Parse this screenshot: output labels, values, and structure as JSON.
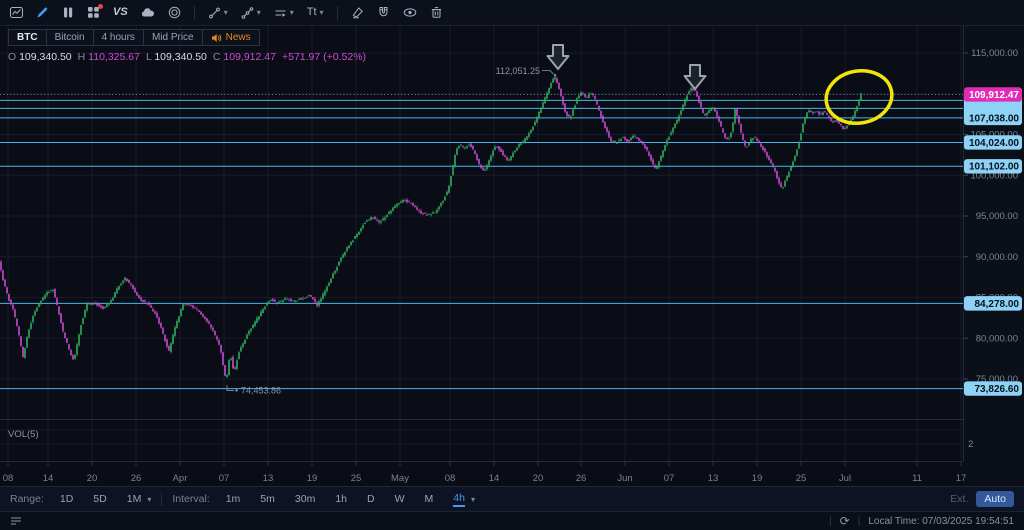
{
  "toolbar": {
    "caret": "▾",
    "vs_label": "VS",
    "text_tool_label": "Tt"
  },
  "symbol_bar": {
    "symbol": "BTC",
    "name": "Bitcoin",
    "timeframe": "4 hours",
    "price_type": "Mid Price",
    "news_label": "News"
  },
  "ohlc": {
    "o_label": "O",
    "o_value": "109,340.50",
    "h_label": "H",
    "h_value": "110,325.67",
    "l_label": "L",
    "l_value": "109,340.50",
    "c_label": "C",
    "c_value": "109,912.47",
    "change": "+571.97 (+0.52%)"
  },
  "chart_ui": {
    "vol_indicator": "VOL(5)",
    "volume_axis_label": "2"
  },
  "chart_data": {
    "type": "candlestick",
    "symbol": "BTC",
    "interval": "4h",
    "scale": {
      "p1": 115000,
      "y1": 53,
      "p2": 95000,
      "y2": 216
    },
    "plot_right": 963,
    "plot_top": 25,
    "plot_bottom_price_pane": 419,
    "plot_bottom": 461,
    "y_ticks": [
      {
        "label": "115,000.00",
        "price": 115000
      },
      {
        "label": "110,000.00",
        "price": 110000
      },
      {
        "label": "105,000.00",
        "price": 105000
      },
      {
        "label": "100,000.00",
        "price": 100000
      },
      {
        "label": "95,000.00",
        "price": 95000
      },
      {
        "label": "90,000.00",
        "price": 90000
      },
      {
        "label": "85,000.00",
        "price": 85000
      },
      {
        "label": "80,000.00",
        "price": 80000
      },
      {
        "label": "75,000.00",
        "price": 75000
      }
    ],
    "x_ticks": [
      {
        "label": "08",
        "x": 8
      },
      {
        "label": "14",
        "x": 48
      },
      {
        "label": "20",
        "x": 92
      },
      {
        "label": "26",
        "x": 136
      },
      {
        "label": "Apr",
        "x": 180
      },
      {
        "label": "07",
        "x": 224
      },
      {
        "label": "13",
        "x": 268
      },
      {
        "label": "19",
        "x": 312
      },
      {
        "label": "25",
        "x": 356
      },
      {
        "label": "May",
        "x": 400
      },
      {
        "label": "08",
        "x": 450
      },
      {
        "label": "14",
        "x": 494
      },
      {
        "label": "20",
        "x": 538
      },
      {
        "label": "26",
        "x": 581
      },
      {
        "label": "Jun",
        "x": 625
      },
      {
        "label": "07",
        "x": 669
      },
      {
        "label": "13",
        "x": 713
      },
      {
        "label": "19",
        "x": 757
      },
      {
        "label": "25",
        "x": 801
      },
      {
        "label": "Jul",
        "x": 845
      },
      {
        "label": "11",
        "x": 917
      },
      {
        "label": "17",
        "x": 961
      }
    ],
    "current_price": {
      "label": "109,912.47",
      "price": 109912.47
    },
    "price_lines": [
      {
        "label": "",
        "price": 109190,
        "hidden": true
      },
      {
        "label": "",
        "price": 108210,
        "hidden": true
      },
      {
        "label": "107,038.00",
        "price": 107038
      },
      {
        "label": "104,024.00",
        "price": 104024
      },
      {
        "label": "101,102.00",
        "price": 101102
      },
      {
        "label": "84,278.00",
        "price": 84278
      },
      {
        "label": "73,826.60",
        "price": 73826.6
      }
    ],
    "annotations": {
      "peak": {
        "text": "112,051.25",
        "x": 556,
        "price": 112051.25
      },
      "low": {
        "text": "74,453.86",
        "x": 227,
        "price": 74453.86
      },
      "arrows": [
        {
          "x": 558,
          "y": 45
        },
        {
          "x": 695,
          "y": 65
        }
      ],
      "highlight_ellipse": {
        "cx": 859,
        "cy": 97,
        "rx": 33,
        "ry": 26,
        "rotate": -10
      }
    },
    "candle_step": 2,
    "end_x": 862,
    "anchors": [
      [
        0,
        89500
      ],
      [
        4,
        87200
      ],
      [
        9,
        85000
      ],
      [
        14,
        83500
      ],
      [
        19,
        81000
      ],
      [
        24,
        77600
      ],
      [
        28,
        80200
      ],
      [
        34,
        82800
      ],
      [
        41,
        84400
      ],
      [
        48,
        85600
      ],
      [
        54,
        86000
      ],
      [
        59,
        83500
      ],
      [
        64,
        80800
      ],
      [
        70,
        78600
      ],
      [
        75,
        77200
      ],
      [
        81,
        81200
      ],
      [
        88,
        84200
      ],
      [
        96,
        84300
      ],
      [
        104,
        83700
      ],
      [
        112,
        84600
      ],
      [
        119,
        86300
      ],
      [
        126,
        87400
      ],
      [
        133,
        86300
      ],
      [
        141,
        84700
      ],
      [
        149,
        84200
      ],
      [
        157,
        82900
      ],
      [
        164,
        80500
      ],
      [
        170,
        78400
      ],
      [
        176,
        81300
      ],
      [
        184,
        84200
      ],
      [
        192,
        84000
      ],
      [
        200,
        83300
      ],
      [
        208,
        82100
      ],
      [
        215,
        80600
      ],
      [
        221,
        78900
      ],
      [
        227,
        74600
      ],
      [
        231,
        78200
      ],
      [
        235,
        75800
      ],
      [
        240,
        78400
      ],
      [
        247,
        80200
      ],
      [
        255,
        81800
      ],
      [
        263,
        83400
      ],
      [
        271,
        84800
      ],
      [
        279,
        84300
      ],
      [
        287,
        84900
      ],
      [
        295,
        84500
      ],
      [
        303,
        84900
      ],
      [
        311,
        85300
      ],
      [
        318,
        84000
      ],
      [
        325,
        85600
      ],
      [
        333,
        87600
      ],
      [
        341,
        89600
      ],
      [
        349,
        91300
      ],
      [
        357,
        92600
      ],
      [
        365,
        94100
      ],
      [
        373,
        94900
      ],
      [
        381,
        94200
      ],
      [
        389,
        95300
      ],
      [
        397,
        96400
      ],
      [
        405,
        97000
      ],
      [
        413,
        96400
      ],
      [
        421,
        95400
      ],
      [
        429,
        95100
      ],
      [
        433,
        95300
      ],
      [
        437,
        95600
      ],
      [
        441,
        96300
      ],
      [
        445,
        97200
      ],
      [
        449,
        98200
      ],
      [
        453,
        100500
      ],
      [
        457,
        103200
      ],
      [
        461,
        103800
      ],
      [
        465,
        103200
      ],
      [
        469,
        103900
      ],
      [
        473,
        103400
      ],
      [
        477,
        102200
      ],
      [
        481,
        101000
      ],
      [
        485,
        100400
      ],
      [
        489,
        101500
      ],
      [
        493,
        102800
      ],
      [
        497,
        103600
      ],
      [
        501,
        103100
      ],
      [
        505,
        102300
      ],
      [
        509,
        101600
      ],
      [
        513,
        102600
      ],
      [
        519,
        103600
      ],
      [
        525,
        104300
      ],
      [
        531,
        105300
      ],
      [
        537,
        106800
      ],
      [
        543,
        108600
      ],
      [
        549,
        110400
      ],
      [
        553,
        111600
      ],
      [
        556,
        112000
      ],
      [
        559,
        111000
      ],
      [
        563,
        109200
      ],
      [
        567,
        107400
      ],
      [
        571,
        107000
      ],
      [
        575,
        108300
      ],
      [
        579,
        109700
      ],
      [
        583,
        110300
      ],
      [
        587,
        109300
      ],
      [
        591,
        110200
      ],
      [
        595,
        109600
      ],
      [
        599,
        108300
      ],
      [
        603,
        106900
      ],
      [
        607,
        105600
      ],
      [
        611,
        104300
      ],
      [
        617,
        103900
      ],
      [
        623,
        104700
      ],
      [
        629,
        104100
      ],
      [
        635,
        104900
      ],
      [
        641,
        104200
      ],
      [
        645,
        103600
      ],
      [
        649,
        102800
      ],
      [
        653,
        101500
      ],
      [
        657,
        100700
      ],
      [
        661,
        102000
      ],
      [
        665,
        103400
      ],
      [
        669,
        104600
      ],
      [
        673,
        105600
      ],
      [
        677,
        106500
      ],
      [
        681,
        107600
      ],
      [
        685,
        108900
      ],
      [
        689,
        110200
      ],
      [
        693,
        110700
      ],
      [
        697,
        110100
      ],
      [
        701,
        108600
      ],
      [
        705,
        107300
      ],
      [
        709,
        107800
      ],
      [
        713,
        108400
      ],
      [
        717,
        107600
      ],
      [
        721,
        106200
      ],
      [
        725,
        104900
      ],
      [
        729,
        104200
      ],
      [
        733,
        105600
      ],
      [
        736,
        108200
      ],
      [
        739,
        106900
      ],
      [
        743,
        104600
      ],
      [
        747,
        103300
      ],
      [
        751,
        104200
      ],
      [
        755,
        104800
      ],
      [
        759,
        104100
      ],
      [
        763,
        103400
      ],
      [
        767,
        102600
      ],
      [
        771,
        101700
      ],
      [
        775,
        100800
      ],
      [
        779,
        99400
      ],
      [
        783,
        98200
      ],
      [
        786,
        99300
      ],
      [
        789,
        100200
      ],
      [
        793,
        101300
      ],
      [
        797,
        102800
      ],
      [
        801,
        104600
      ],
      [
        805,
        106800
      ],
      [
        809,
        108100
      ],
      [
        813,
        107600
      ],
      [
        817,
        108000
      ],
      [
        821,
        107300
      ],
      [
        825,
        107900
      ],
      [
        829,
        107200
      ],
      [
        833,
        106400
      ],
      [
        837,
        106900
      ],
      [
        841,
        106200
      ],
      [
        845,
        105500
      ],
      [
        849,
        106300
      ],
      [
        853,
        107000
      ],
      [
        857,
        108100
      ],
      [
        860,
        109200
      ],
      [
        862,
        109900
      ]
    ]
  },
  "range_bar": {
    "range_label": "Range:",
    "ranges": [
      "1D",
      "5D",
      "1M"
    ],
    "interval_label": "Interval:",
    "intervals": [
      "1m",
      "5m",
      "30m",
      "1h",
      "D",
      "W",
      "M",
      "4h"
    ],
    "active_interval": "4h",
    "caret": "▾",
    "ext_label": "Ext.",
    "auto_label": "Auto"
  },
  "status_bar": {
    "separator": "|",
    "refresh": "⟳",
    "local_time": "Local Time: 07/03/2025 19:54:51"
  },
  "colors": {
    "accent_blue": "#3f9bf5",
    "candle_up": "#2fae5e",
    "candle_down": "#cb4bd3",
    "line_cyan": "#49b6e9",
    "badge_cyan": "#8ed2f5",
    "badge_magenta": "#e02bb4",
    "news_orange": "#e8871e",
    "highlight_yellow": "#f3e50a",
    "grid": "#151c2b",
    "axis_text": "#7b8599",
    "annotation_gray": "#9aa3b2"
  }
}
